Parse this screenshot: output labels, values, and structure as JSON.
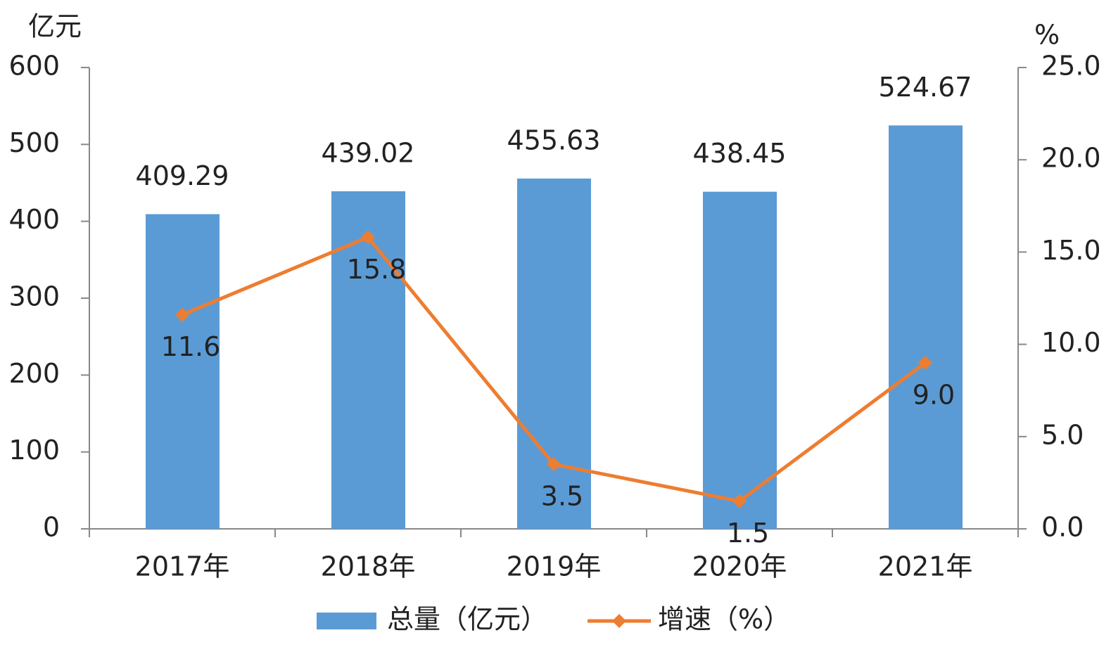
{
  "chart_data": {
    "type": "bar",
    "y_label": "亿元",
    "y2_label": "%",
    "categories": [
      "2017年",
      "2018年",
      "2019年",
      "2020年",
      "2021年"
    ],
    "series": [
      {
        "name": "总量（亿元）",
        "type": "bar",
        "color": "#5b9bd5",
        "values": [
          409.29,
          439.02,
          455.63,
          438.45,
          524.67
        ]
      },
      {
        "name": "增速（%）",
        "type": "line",
        "axis": "y2",
        "color": "#ed7d31",
        "values": [
          11.6,
          15.8,
          3.5,
          1.5,
          9.0
        ],
        "value_labels": [
          "11.6",
          "15.8",
          "3.5",
          "1.5",
          "9.0"
        ]
      }
    ],
    "ylim": [
      0,
      600
    ],
    "yticks": [
      0,
      100,
      200,
      300,
      400,
      500,
      600
    ],
    "y2lim": [
      0,
      25
    ],
    "y2ticks": [
      {
        "value": 0,
        "label": "0.0"
      },
      {
        "value": 5,
        "label": "5.0"
      },
      {
        "value": 10,
        "label": "10.0"
      },
      {
        "value": 15,
        "label": "15.0"
      },
      {
        "value": 20,
        "label": "20.0"
      },
      {
        "value": 25,
        "label": "25.0"
      }
    ],
    "grid": false,
    "legend": "bottom"
  }
}
